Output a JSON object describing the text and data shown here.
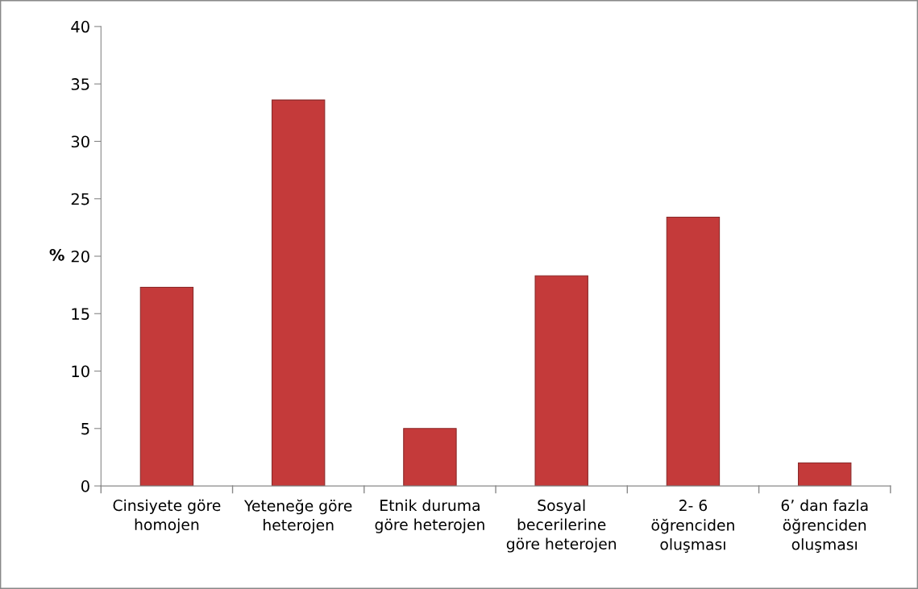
{
  "chart_data": {
    "type": "bar",
    "ylabel": "%",
    "categories": [
      "Cinsiyete göre\nhomojen",
      "Yeteneğe göre\nheterojen",
      "Etnik duruma\ngöre heterojen",
      "Sosyal\nbecerilerine\ngöre heterojen",
      "2- 6\nöğrenciden\noluşması",
      "6’ dan fazla\nöğrenciden\noluşması"
    ],
    "values": [
      17.3,
      33.6,
      5.0,
      18.3,
      23.4,
      2.0
    ],
    "color": "#c43a3a",
    "ylim": [
      0,
      40
    ],
    "yticks": [
      0,
      5,
      10,
      15,
      20,
      25,
      30,
      35,
      40
    ],
    "grid": false
  }
}
